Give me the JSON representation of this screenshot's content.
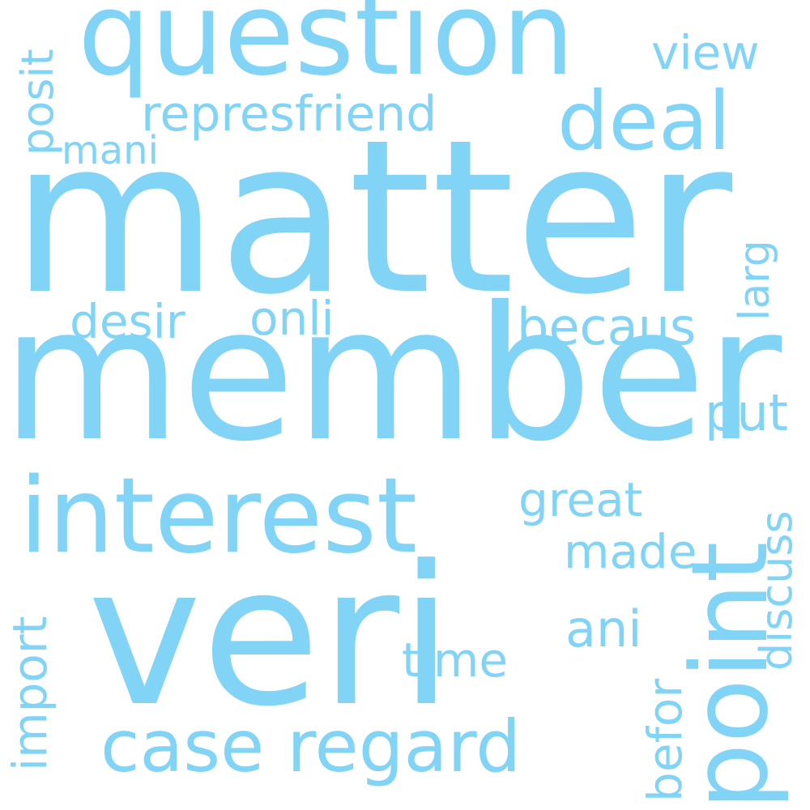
{
  "wordcloud": {
    "color": "#81d4f6",
    "background": "#ffffff",
    "words": {
      "matter": "matter",
      "member": "member",
      "veri": "veri",
      "question": "question",
      "interest": "interest",
      "case": "case regard",
      "deal": "deal",
      "point": "point",
      "repres": "represfriend",
      "view": "view",
      "posit": "posit",
      "mani": "mani",
      "desir": "desir",
      "onli": "onli",
      "becaus": "becaus",
      "larg": "larg",
      "put": "put",
      "great": "great",
      "discuss": "discuss",
      "made": "made",
      "import": "import",
      "ani": "ani",
      "time": "time",
      "befor": "befor"
    }
  }
}
